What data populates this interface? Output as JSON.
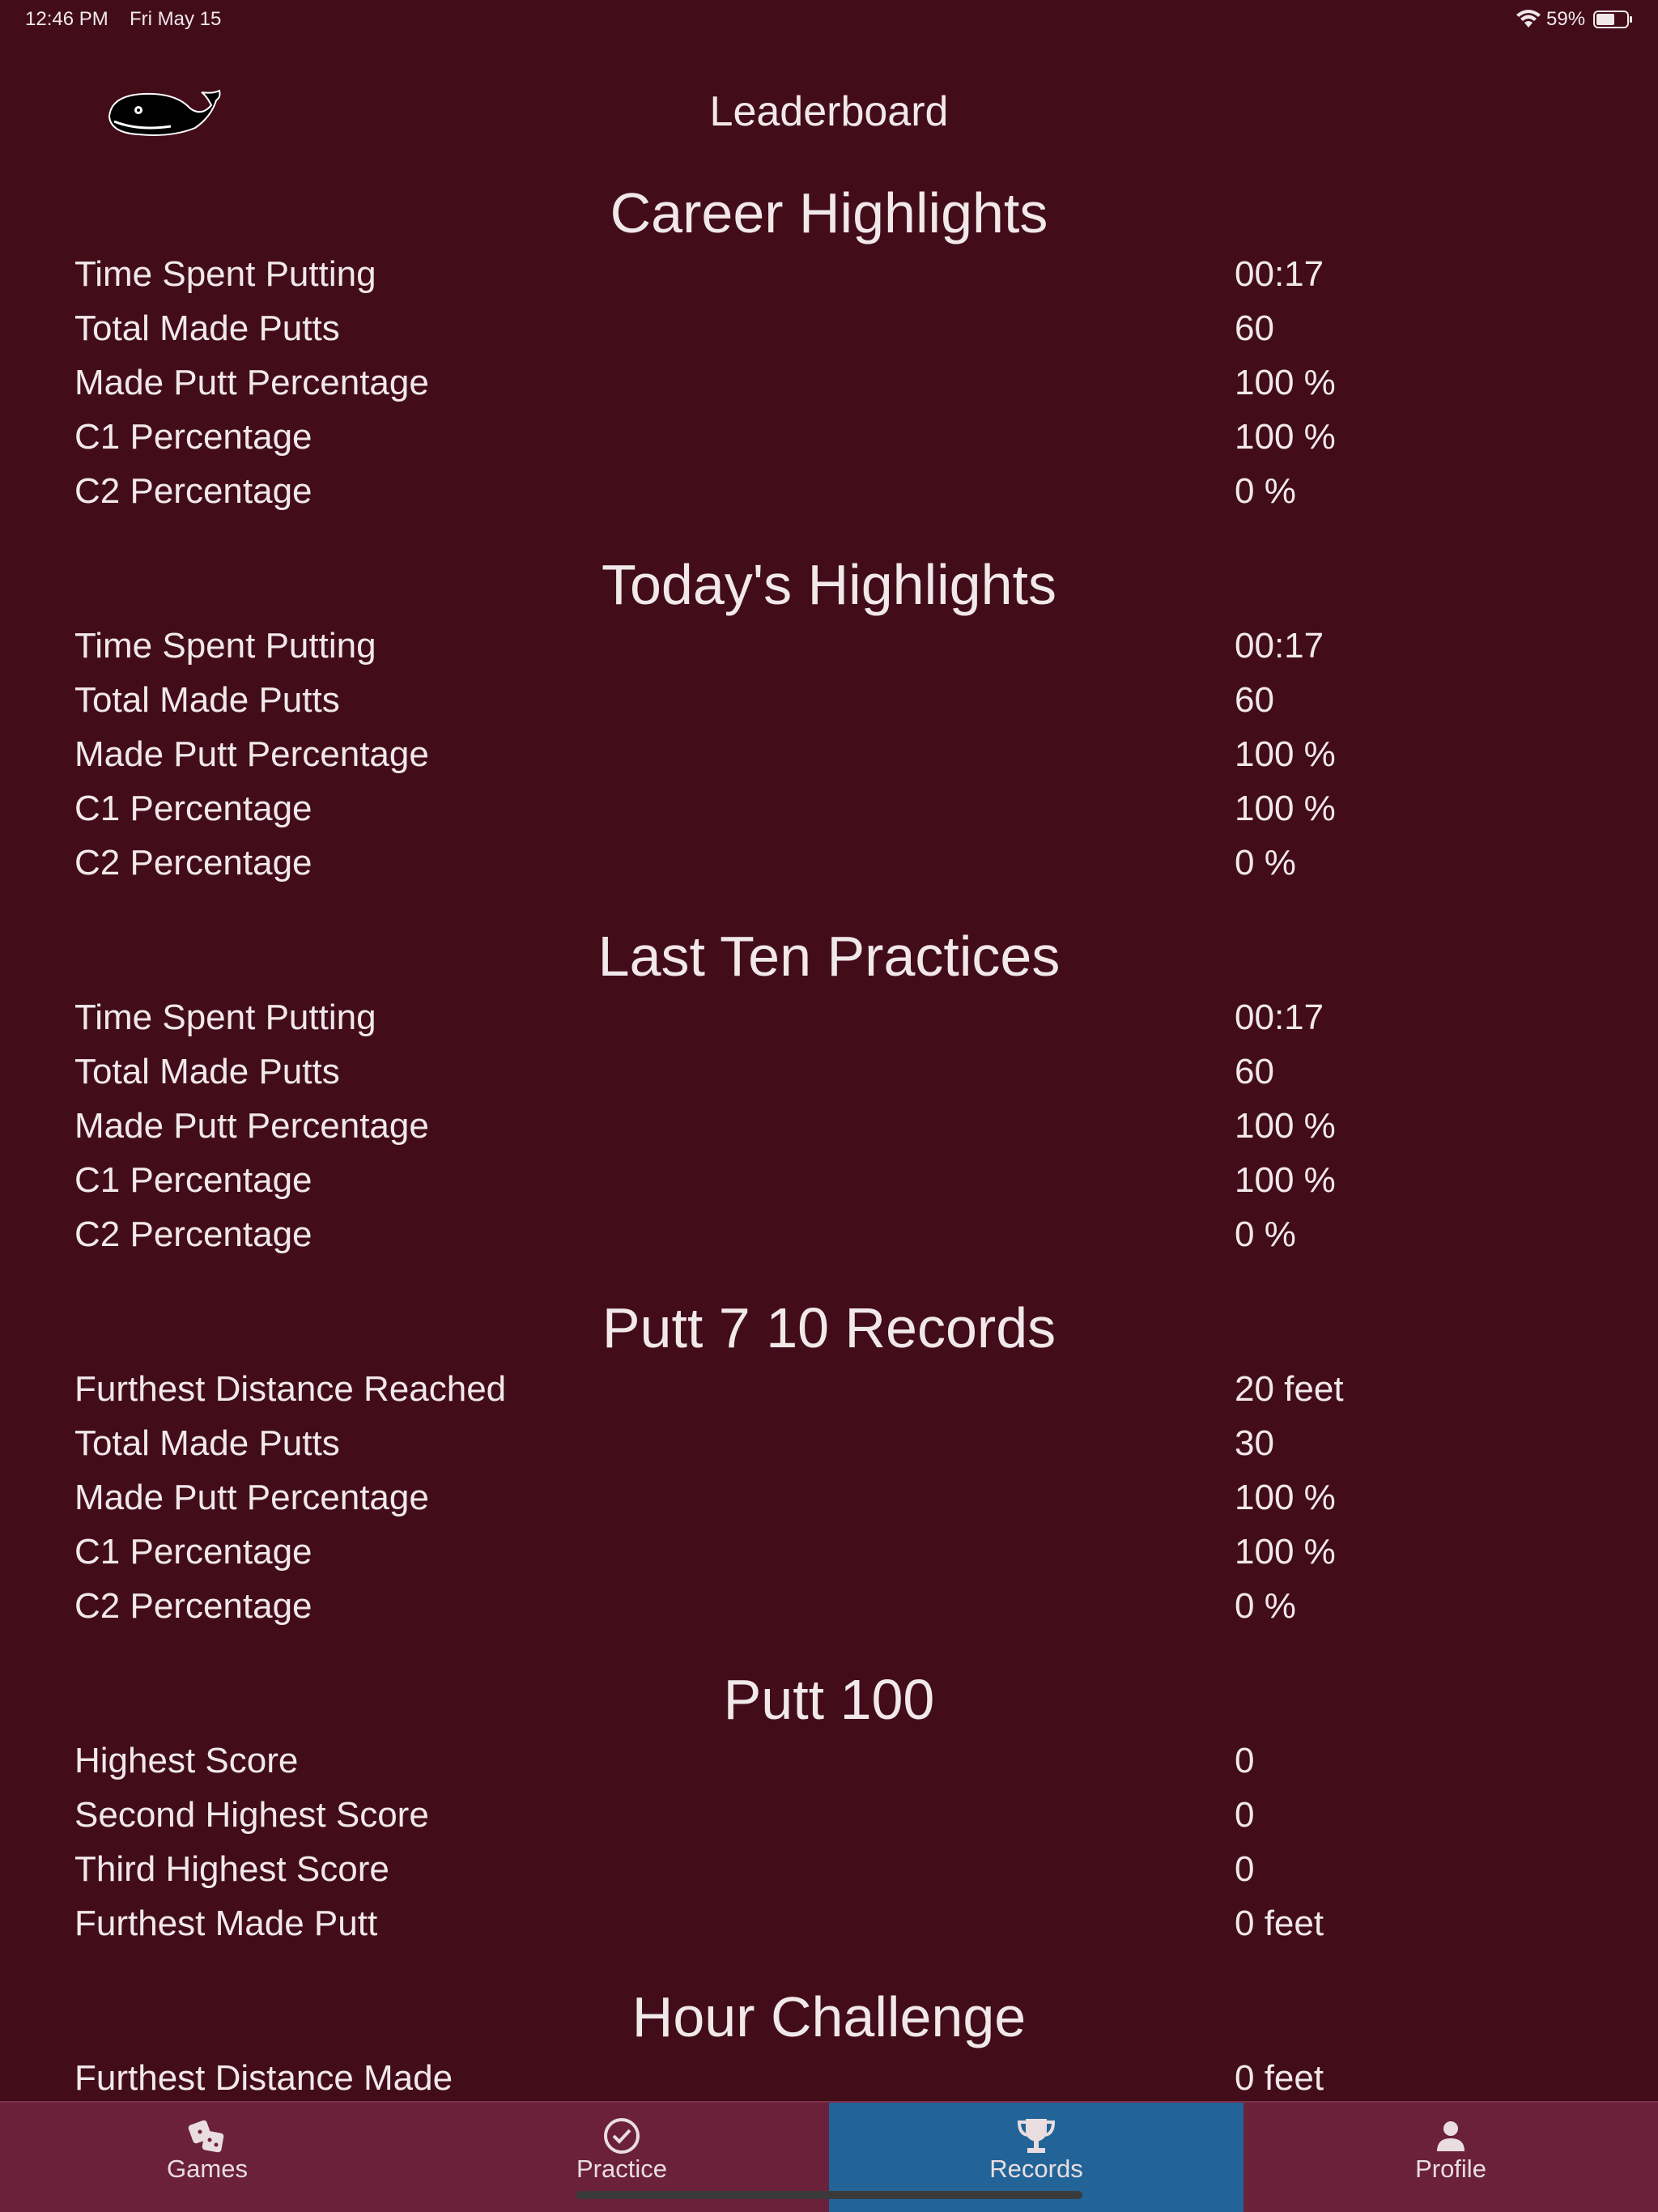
{
  "status_bar": {
    "time": "12:46 PM",
    "date": "Fri May 15",
    "battery": "59%"
  },
  "header": {
    "title": "Leaderboard"
  },
  "sections": [
    {
      "title": "Career Highlights",
      "rows": [
        [
          "Time Spent Putting",
          "00:17"
        ],
        [
          "Total Made Putts",
          "60"
        ],
        [
          "Made Putt Percentage",
          "100 %"
        ],
        [
          "C1 Percentage",
          "100 %"
        ],
        [
          "C2 Percentage",
          "0 %"
        ]
      ]
    },
    {
      "title": "Today's Highlights",
      "rows": [
        [
          "Time Spent Putting",
          "00:17"
        ],
        [
          "Total Made Putts",
          "60"
        ],
        [
          "Made Putt Percentage",
          "100 %"
        ],
        [
          "C1 Percentage",
          "100 %"
        ],
        [
          "C2 Percentage",
          "0 %"
        ]
      ]
    },
    {
      "title": "Last Ten Practices",
      "rows": [
        [
          "Time Spent Putting",
          "00:17"
        ],
        [
          "Total Made Putts",
          "60"
        ],
        [
          "Made Putt Percentage",
          "100 %"
        ],
        [
          "C1 Percentage",
          "100 %"
        ],
        [
          "C2 Percentage",
          "0 %"
        ]
      ]
    },
    {
      "title": "Putt 7 10 Records",
      "rows": [
        [
          "Furthest Distance Reached",
          "20 feet"
        ],
        [
          "Total Made Putts",
          "30"
        ],
        [
          "Made Putt Percentage",
          "100 %"
        ],
        [
          "C1 Percentage",
          "100 %"
        ],
        [
          "C2 Percentage",
          "0 %"
        ]
      ]
    },
    {
      "title": "Putt 100",
      "rows": [
        [
          "Highest Score",
          "0"
        ],
        [
          "Second Highest Score",
          "0"
        ],
        [
          "Third Highest Score",
          "0"
        ],
        [
          "Furthest Made Putt",
          "0 feet"
        ]
      ]
    },
    {
      "title": "Hour Challenge",
      "rows": [
        [
          "Furthest Distance Made",
          "0 feet"
        ]
      ]
    }
  ],
  "tab_bar": {
    "tabs": [
      "Games",
      "Practice",
      "Records",
      "Profile"
    ],
    "active": 2
  }
}
